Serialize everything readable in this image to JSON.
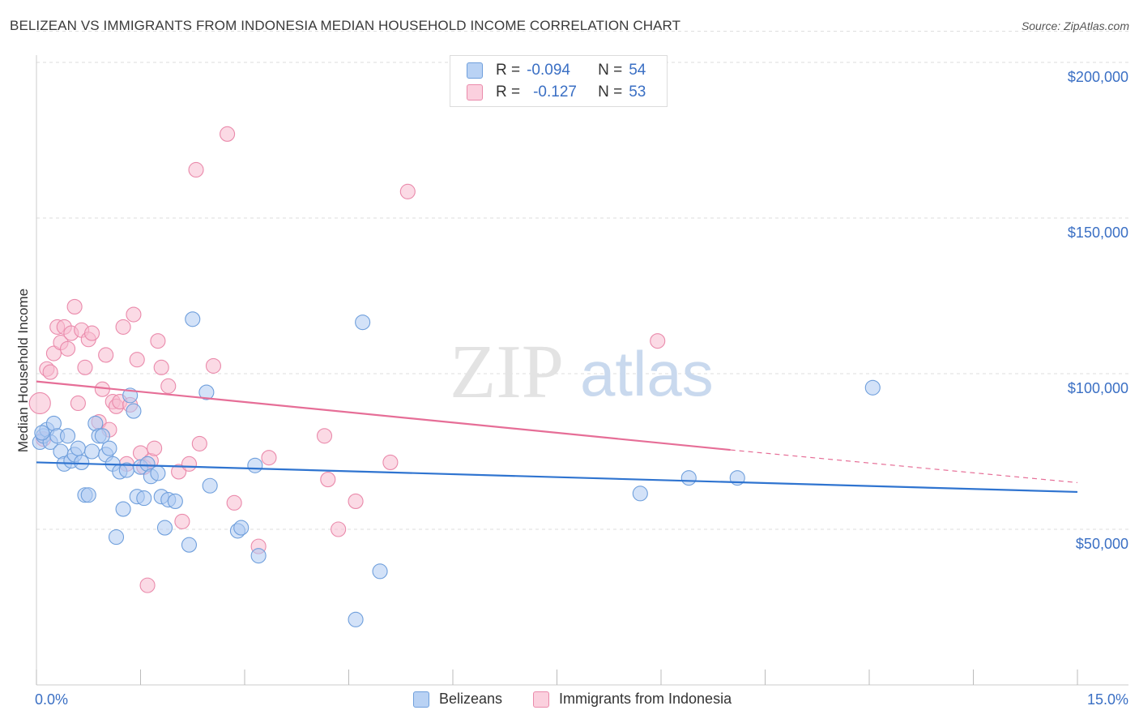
{
  "title": "BELIZEAN VS IMMIGRANTS FROM INDONESIA MEDIAN HOUSEHOLD INCOME CORRELATION CHART",
  "source": "Source: ZipAtlas.com",
  "watermark": {
    "zip": "ZIP",
    "atlas": "atlas"
  },
  "legend": {
    "r_label": "R =",
    "n_label": "N =",
    "series1": {
      "r": "-0.094",
      "n": "54"
    },
    "series2": {
      "r": "-0.127",
      "n": "53"
    }
  },
  "bottom_legend": {
    "series1": "Belizeans",
    "series2": "Immigrants from Indonesia"
  },
  "colors": {
    "blue_fill": "#aecbf2",
    "blue_stroke": "#6f9fdc",
    "blue_line": "#2f74d0",
    "pink_fill": "#f7bcd0",
    "pink_stroke": "#ea8aab",
    "pink_line": "#e66e97",
    "tick": "#3a6fc4",
    "grid": "#dddddd"
  },
  "chart_data": {
    "type": "scatter",
    "title": "BELIZEAN VS IMMIGRANTS FROM INDONESIA MEDIAN HOUSEHOLD INCOME CORRELATION CHART",
    "xlabel": "",
    "ylabel": "Median Household Income",
    "xlim": [
      0,
      15
    ],
    "ylim": [
      0,
      210000
    ],
    "x_tick_labels": [
      "0.0%",
      "15.0%"
    ],
    "y_ticks": [
      50000,
      100000,
      150000,
      200000
    ],
    "y_tick_labels": [
      "$50,000",
      "$100,000",
      "$150,000",
      "$200,000"
    ],
    "series": [
      {
        "name": "Belizeans",
        "r": -0.094,
        "n": 54,
        "trend": {
          "x": [
            0,
            15
          ],
          "y": [
            71500,
            62000
          ]
        },
        "points": [
          [
            0.05,
            78000
          ],
          [
            0.1,
            80000
          ],
          [
            0.15,
            82000
          ],
          [
            0.2,
            78000
          ],
          [
            0.25,
            84000
          ],
          [
            0.3,
            80000
          ],
          [
            0.35,
            75000
          ],
          [
            0.4,
            71000
          ],
          [
            0.45,
            80000
          ],
          [
            0.5,
            72000
          ],
          [
            0.55,
            74000
          ],
          [
            0.6,
            76000
          ],
          [
            0.65,
            71500
          ],
          [
            0.7,
            61000
          ],
          [
            0.75,
            61000
          ],
          [
            0.8,
            75000
          ],
          [
            0.85,
            84000
          ],
          [
            0.9,
            80000
          ],
          [
            0.95,
            80000
          ],
          [
            1.0,
            74000
          ],
          [
            1.05,
            76000
          ],
          [
            1.1,
            71000
          ],
          [
            1.15,
            47500
          ],
          [
            1.2,
            68500
          ],
          [
            1.25,
            56500
          ],
          [
            1.3,
            69000
          ],
          [
            1.35,
            93000
          ],
          [
            1.4,
            88000
          ],
          [
            1.45,
            60500
          ],
          [
            1.5,
            70000
          ],
          [
            1.55,
            60000
          ],
          [
            1.6,
            71000
          ],
          [
            1.65,
            67000
          ],
          [
            1.75,
            68000
          ],
          [
            1.8,
            60500
          ],
          [
            1.85,
            50500
          ],
          [
            1.9,
            59500
          ],
          [
            2.0,
            59000
          ],
          [
            2.2,
            45000
          ],
          [
            2.25,
            117500
          ],
          [
            2.45,
            94000
          ],
          [
            2.5,
            64000
          ],
          [
            2.9,
            49500
          ],
          [
            2.95,
            50500
          ],
          [
            3.15,
            70500
          ],
          [
            3.2,
            41500
          ],
          [
            4.6,
            21000
          ],
          [
            4.7,
            116500
          ],
          [
            4.95,
            36500
          ],
          [
            8.7,
            61500
          ],
          [
            9.4,
            66500
          ],
          [
            10.1,
            66500
          ],
          [
            12.05,
            95500
          ],
          [
            0.08,
            81000
          ]
        ]
      },
      {
        "name": "Immigrants from Indonesia",
        "r": -0.127,
        "n": 53,
        "trend": {
          "x": [
            0,
            10
          ],
          "y": [
            97500,
            75500
          ]
        },
        "trend_dashed": {
          "x": [
            10,
            15
          ],
          "y": [
            75500,
            65000
          ]
        },
        "points": [
          [
            0.05,
            90500
          ],
          [
            0.1,
            79000
          ],
          [
            0.15,
            101500
          ],
          [
            0.2,
            100500
          ],
          [
            0.25,
            106500
          ],
          [
            0.3,
            115000
          ],
          [
            0.35,
            110000
          ],
          [
            0.4,
            115000
          ],
          [
            0.45,
            108000
          ],
          [
            0.5,
            113000
          ],
          [
            0.55,
            121500
          ],
          [
            0.6,
            90500
          ],
          [
            0.65,
            114000
          ],
          [
            0.7,
            102000
          ],
          [
            0.75,
            111000
          ],
          [
            0.8,
            113000
          ],
          [
            0.9,
            84500
          ],
          [
            0.95,
            95000
          ],
          [
            1.0,
            106000
          ],
          [
            1.05,
            82000
          ],
          [
            1.1,
            91000
          ],
          [
            1.15,
            89500
          ],
          [
            1.2,
            91000
          ],
          [
            1.25,
            115000
          ],
          [
            1.3,
            71000
          ],
          [
            1.35,
            90000
          ],
          [
            1.4,
            119000
          ],
          [
            1.45,
            104500
          ],
          [
            1.5,
            74500
          ],
          [
            1.55,
            70000
          ],
          [
            1.6,
            32000
          ],
          [
            1.65,
            72000
          ],
          [
            1.7,
            76000
          ],
          [
            1.75,
            110500
          ],
          [
            1.8,
            102000
          ],
          [
            1.9,
            96000
          ],
          [
            2.05,
            68500
          ],
          [
            2.1,
            52500
          ],
          [
            2.2,
            71000
          ],
          [
            2.3,
            165500
          ],
          [
            2.35,
            77500
          ],
          [
            2.55,
            102500
          ],
          [
            2.75,
            177000
          ],
          [
            2.85,
            58500
          ],
          [
            3.2,
            44500
          ],
          [
            3.35,
            73000
          ],
          [
            4.15,
            80000
          ],
          [
            4.2,
            66000
          ],
          [
            4.35,
            50000
          ],
          [
            4.6,
            59000
          ],
          [
            5.1,
            71500
          ],
          [
            5.35,
            158500
          ],
          [
            8.95,
            110500
          ]
        ]
      }
    ]
  }
}
